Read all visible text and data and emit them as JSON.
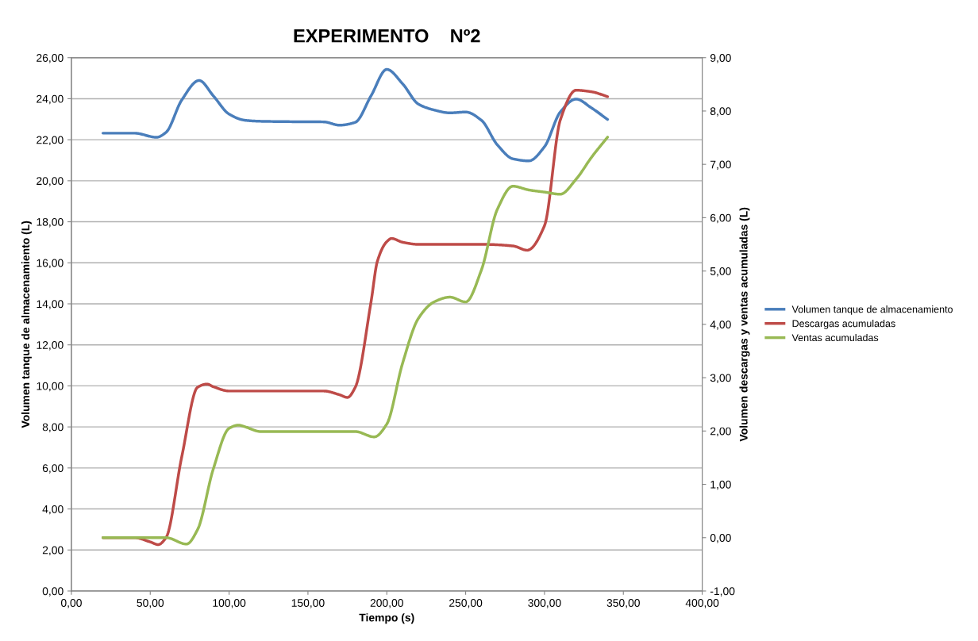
{
  "chart_data": {
    "type": "line",
    "title": "EXPERIMENTO    Nº2",
    "xlabel": "Tiempo (s)",
    "ylabel": "Volumen tanque de almacenamiento (L)",
    "y2label": "Volumen descargas y ventas acumuladas (L)",
    "series": [
      {
        "name": "Volumen tanque de almacenamiento",
        "color": "#4a7ebb",
        "x": [
          20,
          30,
          40,
          54,
          60,
          70,
          81,
          90,
          100,
          110,
          120,
          140,
          160,
          170,
          180,
          190,
          200,
          210,
          220,
          230,
          240,
          250,
          260,
          270,
          280,
          290,
          300,
          310,
          320,
          330,
          340
        ],
        "values": [
          22.32,
          22.32,
          22.32,
          22.12,
          22.36,
          23.94,
          24.89,
          24.14,
          23.25,
          22.95,
          22.9,
          22.88,
          22.87,
          22.71,
          22.85,
          24.14,
          25.43,
          24.73,
          23.74,
          23.45,
          23.31,
          23.35,
          22.95,
          21.76,
          21.07,
          20.97,
          21.66,
          23.35,
          23.98,
          23.54,
          22.99
        ]
      },
      {
        "name": "Descargas acumuladas",
        "color": "#be4b48",
        "axis": "y2",
        "x": [
          20,
          30,
          40,
          50,
          55,
          60,
          70,
          80,
          86,
          90,
          100,
          120,
          140,
          160,
          170,
          175,
          180,
          190,
          194,
          200,
          203,
          210,
          220,
          240,
          260,
          280,
          289,
          300,
          310,
          320,
          330,
          340
        ],
        "values": [
          0,
          0,
          0,
          -0.08,
          -0.13,
          0,
          1.52,
          2.82,
          2.88,
          2.83,
          2.75,
          2.75,
          2.75,
          2.75,
          2.68,
          2.63,
          2.82,
          4.42,
          5.18,
          5.55,
          5.61,
          5.54,
          5.5,
          5.5,
          5.5,
          5.47,
          5.39,
          5.85,
          7.83,
          8.39,
          8.36,
          8.27
        ]
      },
      {
        "name": "Ventas acumuladas",
        "color": "#98b954",
        "axis": "y2",
        "x": [
          20,
          30,
          40,
          50,
          60,
          73,
          80,
          90,
          100,
          106,
          110,
          120,
          140,
          160,
          180,
          192,
          200,
          210,
          220,
          230,
          240,
          250,
          260,
          270,
          280,
          290,
          300,
          310,
          320,
          330,
          340
        ],
        "values": [
          0,
          0,
          0,
          0,
          0,
          -0.12,
          0.15,
          1.29,
          2.05,
          2.11,
          2.08,
          1.99,
          1.99,
          1.99,
          1.99,
          1.89,
          2.13,
          3.27,
          4.11,
          4.42,
          4.51,
          4.42,
          5.02,
          6.15,
          6.59,
          6.52,
          6.48,
          6.44,
          6.72,
          7.14,
          7.51
        ]
      }
    ],
    "xlim": [
      0,
      400
    ],
    "xticks": [
      {
        "value": 0,
        "label": "0,00"
      },
      {
        "value": 50,
        "label": "50,00"
      },
      {
        "value": 100,
        "label": "100,00"
      },
      {
        "value": 150,
        "label": "150,00"
      },
      {
        "value": 200,
        "label": "200,00"
      },
      {
        "value": 250,
        "label": "250,00"
      },
      {
        "value": 300,
        "label": "300,00"
      },
      {
        "value": 350,
        "label": "350,00"
      },
      {
        "value": 400,
        "label": "400,00"
      }
    ],
    "ylim": [
      0,
      26
    ],
    "yticks": [
      {
        "value": 0,
        "label": "0,00"
      },
      {
        "value": 2,
        "label": "2,00"
      },
      {
        "value": 4,
        "label": "4,00"
      },
      {
        "value": 6,
        "label": "6,00"
      },
      {
        "value": 8,
        "label": "8,00"
      },
      {
        "value": 10,
        "label": "10,00"
      },
      {
        "value": 12,
        "label": "12,00"
      },
      {
        "value": 14,
        "label": "14,00"
      },
      {
        "value": 16,
        "label": "16,00"
      },
      {
        "value": 18,
        "label": "18,00"
      },
      {
        "value": 20,
        "label": "20,00"
      },
      {
        "value": 22,
        "label": "22,00"
      },
      {
        "value": 24,
        "label": "24,00"
      },
      {
        "value": 26,
        "label": "26,00"
      }
    ],
    "y2lim": [
      -1,
      9
    ],
    "y2ticks": [
      {
        "value": -1,
        "label": "-1,00"
      },
      {
        "value": 0,
        "label": "0,00"
      },
      {
        "value": 1,
        "label": "1,00"
      },
      {
        "value": 2,
        "label": "2,00"
      },
      {
        "value": 3,
        "label": "3,00"
      },
      {
        "value": 4,
        "label": "4,00"
      },
      {
        "value": 5,
        "label": "5,00"
      },
      {
        "value": 6,
        "label": "6,00"
      },
      {
        "value": 7,
        "label": "7,00"
      },
      {
        "value": 8,
        "label": "8,00"
      },
      {
        "value": 9,
        "label": "9,00"
      }
    ],
    "grid": "y",
    "legend": "right",
    "marker": "none",
    "line_style": "solid"
  }
}
